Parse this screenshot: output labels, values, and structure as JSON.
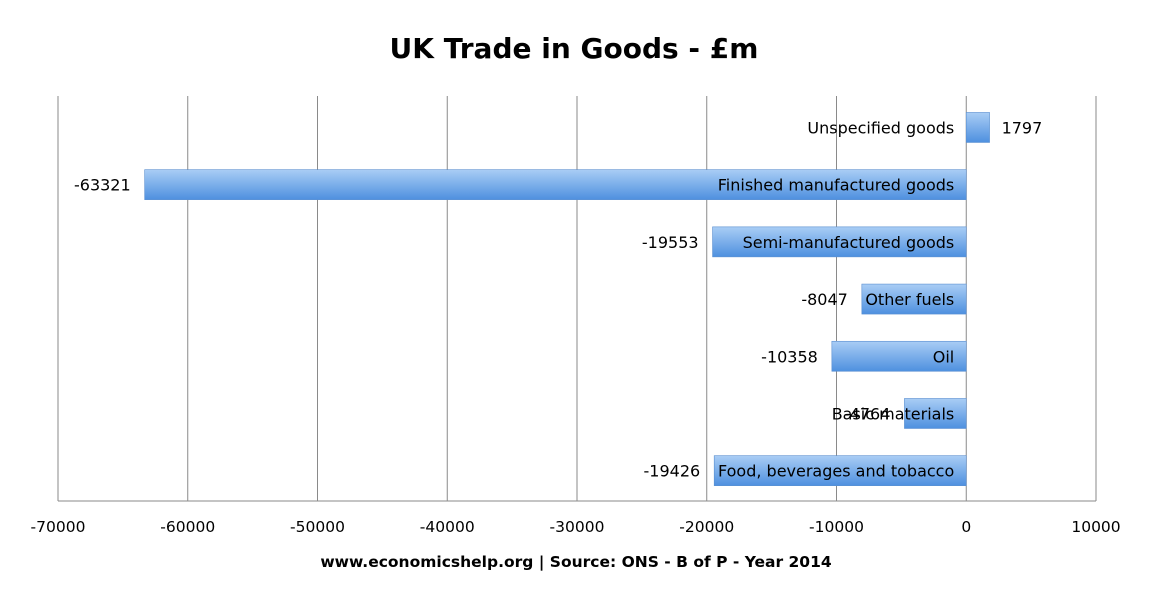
{
  "chart_data": {
    "type": "bar",
    "orientation": "horizontal",
    "title": "UK Trade in Goods - £m",
    "xlabel": "www.economicshelp.org | Source: ONS - B of P - Year 2014",
    "ylabel": "",
    "categories": [
      "Unspecified goods",
      "Finished manufactured goods",
      "Semi-manufactured goods",
      "Other fuels",
      "Oil",
      "Basic materials",
      "Food, beverages and tobacco"
    ],
    "values": [
      1797,
      -63321,
      -19553,
      -8047,
      -10358,
      -4764,
      -19426
    ],
    "xlim": [
      -70000,
      10000
    ],
    "xticks": [
      -70000,
      -60000,
      -50000,
      -40000,
      -30000,
      -20000,
      -10000,
      0,
      10000
    ],
    "grid": "vertical",
    "legend": "none",
    "colors": {
      "bar_top": "#a9cdf5",
      "bar_bottom": "#4e90df",
      "bar_stroke": "#5a8fd0",
      "grid": "#8a8a8a"
    }
  }
}
